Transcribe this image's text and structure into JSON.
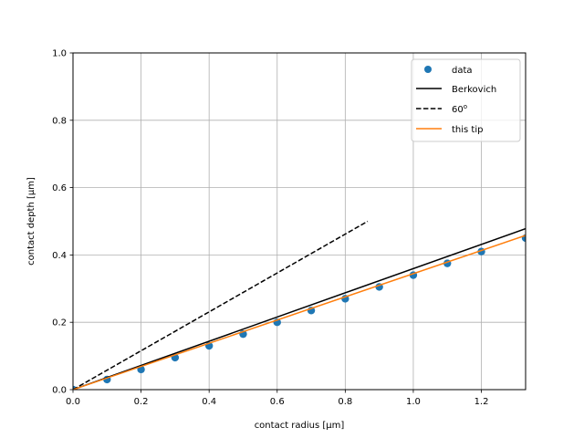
{
  "chart_data": {
    "type": "scatter",
    "xlabel": "contact radius [µm]",
    "ylabel": "contact depth [µm]",
    "xlim": [
      0.0,
      1.33
    ],
    "ylim": [
      0.0,
      1.0
    ],
    "x_ticks": [
      "0.0",
      "0.2",
      "0.4",
      "0.6",
      "0.8",
      "1.0",
      "1.2"
    ],
    "y_ticks": [
      "0.0",
      "0.2",
      "0.4",
      "0.6",
      "0.8",
      "1.0"
    ],
    "grid": true,
    "legend_position": "top-right",
    "legend": [
      {
        "label": "data",
        "style": "marker",
        "color": "#1f77b4"
      },
      {
        "label": "Berkovich",
        "style": "solid",
        "color": "#000000"
      },
      {
        "label": "60",
        "superscript": "o",
        "style": "dashed",
        "color": "#000000"
      },
      {
        "label": "this tip",
        "style": "solid",
        "color": "#ff7f0e"
      }
    ],
    "series": [
      {
        "name": "data",
        "kind": "scatter",
        "color": "#1f77b4",
        "x": [
          0.0,
          0.1,
          0.2,
          0.3,
          0.4,
          0.5,
          0.6,
          0.7,
          0.8,
          0.9,
          1.0,
          1.1,
          1.2,
          1.33
        ],
        "y": [
          0.0,
          0.03,
          0.06,
          0.095,
          0.13,
          0.165,
          0.2,
          0.235,
          0.27,
          0.305,
          0.34,
          0.375,
          0.41,
          0.45
        ]
      },
      {
        "name": "Berkovich",
        "kind": "line",
        "color": "#000000",
        "dash": "solid",
        "x": [
          0.0,
          1.33
        ],
        "y": [
          0.0,
          0.478
        ]
      },
      {
        "name": "60",
        "kind": "line",
        "color": "#000000",
        "dash": "dashed",
        "x": [
          0.0,
          0.866
        ],
        "y": [
          0.0,
          0.5
        ]
      },
      {
        "name": "this tip",
        "kind": "line",
        "color": "#ff7f0e",
        "dash": "solid",
        "x": [
          0.0,
          1.33
        ],
        "y": [
          0.0,
          0.458
        ]
      }
    ]
  }
}
